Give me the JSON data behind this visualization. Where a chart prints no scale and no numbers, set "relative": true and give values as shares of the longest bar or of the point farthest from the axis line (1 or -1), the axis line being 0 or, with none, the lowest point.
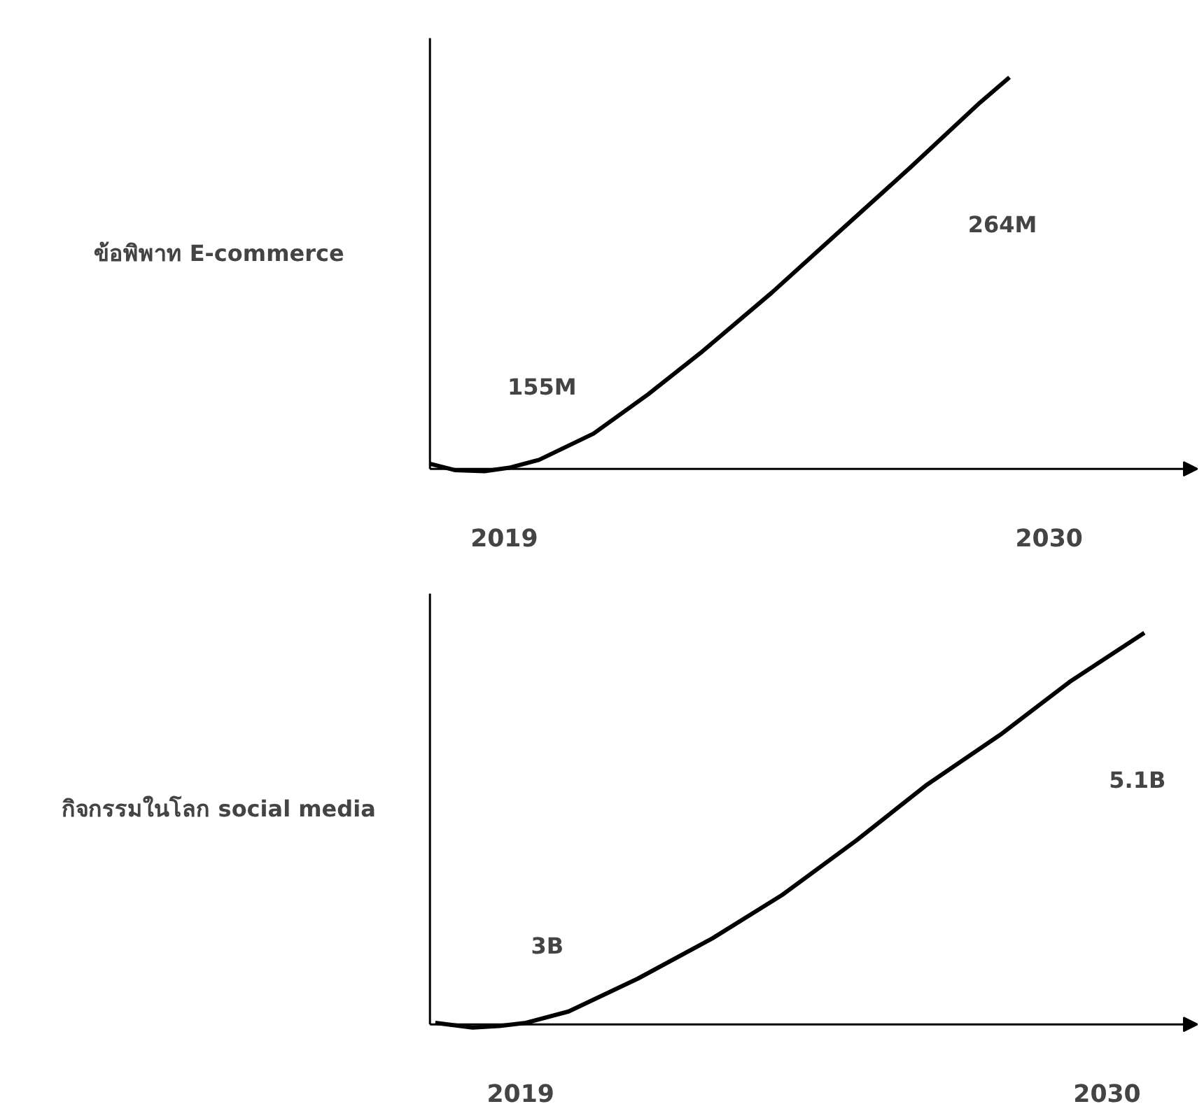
{
  "chart_data": [
    {
      "type": "line",
      "ylabel": "ข้อพิพาท E-commerce",
      "relative": true,
      "xlim": [
        2017.5,
        2033
      ],
      "xticks": [
        2019,
        2030
      ],
      "line_style": "solid",
      "x": [
        2017.5,
        2018.0,
        2018.6,
        2019.1,
        2019.7,
        2020.8,
        2021.9,
        2023.0,
        2024.4,
        2025.8,
        2027.2,
        2028.6,
        2029.2
      ],
      "series": [
        {
          "color": "#000000",
          "values": [
            0.013,
            -0.003,
            -0.006,
            0.003,
            0.023,
            0.09,
            0.19,
            0.3,
            0.45,
            0.61,
            0.77,
            0.935,
            1.0
          ]
        }
      ],
      "annotations": [
        "155M",
        "264M"
      ]
    },
    {
      "type": "line",
      "ylabel": "กิจกรรมในโลก social media",
      "relative": true,
      "xlim": [
        2017.3,
        2031.7
      ],
      "xticks": [
        2019,
        2030
      ],
      "line_style": "solid",
      "x": [
        2017.4,
        2018.1,
        2018.6,
        2019.1,
        2019.9,
        2021.2,
        2022.6,
        2023.9,
        2025.3,
        2026.6,
        2028.0,
        2029.3,
        2030.7
      ],
      "series": [
        {
          "color": "#000000",
          "values": [
            0.004,
            -0.008,
            -0.004,
            0.004,
            0.033,
            0.117,
            0.22,
            0.33,
            0.47,
            0.61,
            0.74,
            0.875,
            1.0
          ]
        }
      ],
      "annotations": [
        "3B",
        "5.1B"
      ]
    }
  ]
}
